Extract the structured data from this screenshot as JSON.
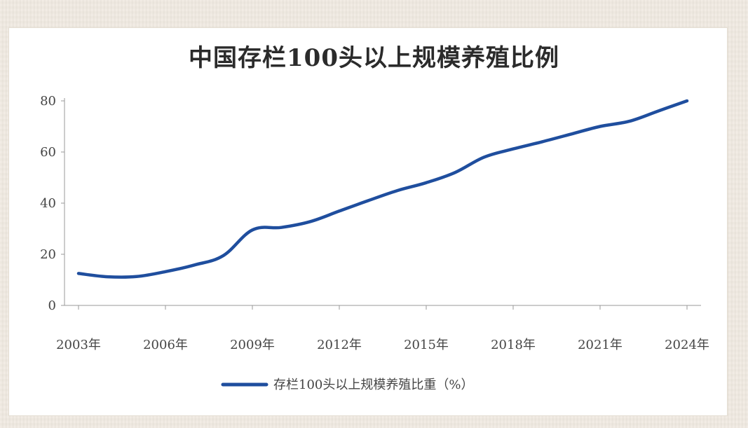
{
  "chart_data": {
    "type": "line",
    "title": "中国存栏100头以上规模养殖比例",
    "x": [
      "2003",
      "2004",
      "2005",
      "2006",
      "2007",
      "2008",
      "2009",
      "2010",
      "2011",
      "2012",
      "2013",
      "2014",
      "2015",
      "2016",
      "2017",
      "2018",
      "2019",
      "2020",
      "2021",
      "2022",
      "2023",
      "2024"
    ],
    "xticks": [
      "2003年",
      "2006年",
      "2009年",
      "2012年",
      "2015年",
      "2018年",
      "2021年",
      "2024年"
    ],
    "yticks": [
      "0",
      "20",
      "40",
      "60",
      "80"
    ],
    "ylim": [
      0,
      80
    ],
    "series": [
      {
        "name": "存栏100头以上规模养殖比重（%）",
        "values": [
          12.5,
          11.2,
          11.3,
          13.2,
          15.8,
          19.5,
          29.5,
          30.5,
          32.8,
          36.9,
          41.0,
          44.9,
          48.0,
          52.0,
          58.0,
          61.2,
          64.0,
          67.0,
          70.0,
          72.0,
          76.0,
          80.0
        ],
        "color": "#1f4e9e"
      }
    ],
    "legend": "bottom-center",
    "grid": false
  }
}
